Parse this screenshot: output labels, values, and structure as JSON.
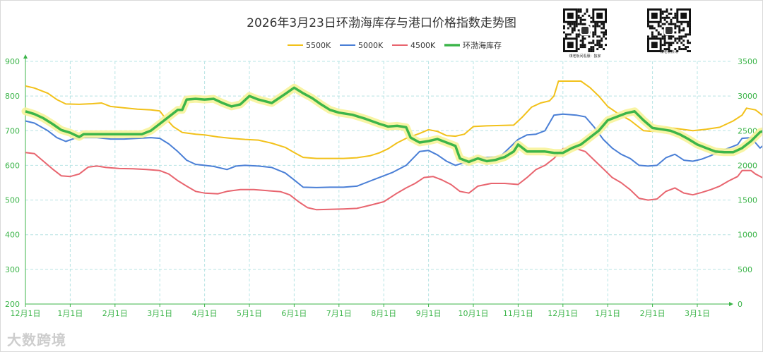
{
  "chart_data": {
    "type": "line",
    "title": "2026年3月23日环渤海库存与港口价格指数走势图",
    "x_ticks": [
      "12月1日",
      "1月1日",
      "2月1日",
      "3月1日",
      "4月1日",
      "5月1日",
      "6月1日",
      "7月1日",
      "8月1日",
      "9月1日",
      "10月1日",
      "11月1日",
      "12月1日",
      "1月1日",
      "2月1日",
      "3月1日"
    ],
    "y_left": {
      "min": 200,
      "max": 900,
      "ticks": [
        200,
        300,
        400,
        500,
        600,
        700,
        800,
        900
      ]
    },
    "y_right": {
      "min": 0,
      "max": 3500,
      "ticks": [
        0,
        500,
        1000,
        1500,
        2000,
        2500,
        3000,
        3500
      ]
    },
    "x_range": [
      0,
      16.65
    ],
    "grid": true,
    "legend_position": "top-center",
    "series": [
      {
        "name": "5500K",
        "axis": "left",
        "color": "#f2c11a",
        "points": [
          [
            0,
            829
          ],
          [
            0.2,
            823
          ],
          [
            0.5,
            808
          ],
          [
            0.7,
            790
          ],
          [
            0.9,
            777
          ],
          [
            1.2,
            776
          ],
          [
            1.5,
            778
          ],
          [
            1.7,
            780
          ],
          [
            1.9,
            770
          ],
          [
            2.2,
            766
          ],
          [
            2.5,
            762
          ],
          [
            2.8,
            760
          ],
          [
            3,
            757
          ],
          [
            3.1,
            740
          ],
          [
            3.3,
            712
          ],
          [
            3.5,
            695
          ],
          [
            3.8,
            690
          ],
          [
            4,
            688
          ],
          [
            4.3,
            682
          ],
          [
            4.6,
            678
          ],
          [
            4.9,
            675
          ],
          [
            5.2,
            673
          ],
          [
            5.5,
            664
          ],
          [
            5.8,
            652
          ],
          [
            6,
            637
          ],
          [
            6.2,
            623
          ],
          [
            6.5,
            620
          ],
          [
            6.8,
            620
          ],
          [
            7.1,
            620
          ],
          [
            7.4,
            622
          ],
          [
            7.7,
            628
          ],
          [
            7.9,
            636
          ],
          [
            8.1,
            648
          ],
          [
            8.3,
            665
          ],
          [
            8.5,
            678
          ],
          [
            8.8,
            692
          ],
          [
            9,
            703
          ],
          [
            9.2,
            698
          ],
          [
            9.4,
            686
          ],
          [
            9.6,
            684
          ],
          [
            9.8,
            690
          ],
          [
            10,
            712
          ],
          [
            10.3,
            714
          ],
          [
            10.6,
            715
          ],
          [
            10.9,
            716
          ],
          [
            11.1,
            740
          ],
          [
            11.3,
            768
          ],
          [
            11.5,
            780
          ],
          [
            11.7,
            786
          ],
          [
            11.8,
            800
          ],
          [
            11.9,
            843
          ],
          [
            12.1,
            843
          ],
          [
            12.4,
            843
          ],
          [
            12.6,
            825
          ],
          [
            12.8,
            800
          ],
          [
            13,
            770
          ],
          [
            13.2,
            752
          ],
          [
            13.5,
            730
          ],
          [
            13.8,
            700
          ],
          [
            14,
            698
          ],
          [
            14.3,
            710
          ],
          [
            14.6,
            705
          ],
          [
            14.9,
            700
          ],
          [
            15.2,
            704
          ],
          [
            15.5,
            710
          ],
          [
            15.8,
            728
          ],
          [
            16,
            745
          ],
          [
            16.1,
            765
          ],
          [
            16.3,
            760
          ],
          [
            16.5,
            740
          ],
          [
            16.65,
            745
          ]
        ]
      },
      {
        "name": "5000K",
        "axis": "left",
        "color": "#4a7fd6",
        "points": [
          [
            0,
            728
          ],
          [
            0.2,
            722
          ],
          [
            0.5,
            700
          ],
          [
            0.7,
            680
          ],
          [
            0.9,
            669
          ],
          [
            1.1,
            678
          ],
          [
            1.3,
            680
          ],
          [
            1.6,
            680
          ],
          [
            1.9,
            676
          ],
          [
            2.2,
            676
          ],
          [
            2.5,
            678
          ],
          [
            2.8,
            680
          ],
          [
            3,
            678
          ],
          [
            3.2,
            662
          ],
          [
            3.4,
            640
          ],
          [
            3.6,
            615
          ],
          [
            3.8,
            603
          ],
          [
            4,
            600
          ],
          [
            4.2,
            597
          ],
          [
            4.5,
            588
          ],
          [
            4.7,
            598
          ],
          [
            4.9,
            600
          ],
          [
            5.2,
            598
          ],
          [
            5.5,
            594
          ],
          [
            5.8,
            578
          ],
          [
            6,
            558
          ],
          [
            6.2,
            537
          ],
          [
            6.5,
            536
          ],
          [
            6.8,
            537
          ],
          [
            7.1,
            537
          ],
          [
            7.4,
            540
          ],
          [
            7.7,
            555
          ],
          [
            8,
            570
          ],
          [
            8.2,
            580
          ],
          [
            8.5,
            600
          ],
          [
            8.8,
            640
          ],
          [
            9,
            643
          ],
          [
            9.2,
            630
          ],
          [
            9.4,
            612
          ],
          [
            9.6,
            600
          ],
          [
            9.8,
            608
          ],
          [
            10,
            620
          ],
          [
            10.3,
            623
          ],
          [
            10.6,
            625
          ],
          [
            10.8,
            650
          ],
          [
            11,
            675
          ],
          [
            11.2,
            688
          ],
          [
            11.4,
            690
          ],
          [
            11.6,
            700
          ],
          [
            11.8,
            745
          ],
          [
            12,
            748
          ],
          [
            12.3,
            745
          ],
          [
            12.5,
            740
          ],
          [
            12.7,
            710
          ],
          [
            12.9,
            675
          ],
          [
            13.1,
            650
          ],
          [
            13.3,
            632
          ],
          [
            13.5,
            620
          ],
          [
            13.7,
            600
          ],
          [
            13.9,
            598
          ],
          [
            14.1,
            600
          ],
          [
            14.3,
            622
          ],
          [
            14.5,
            632
          ],
          [
            14.7,
            615
          ],
          [
            14.9,
            612
          ],
          [
            15.1,
            618
          ],
          [
            15.3,
            628
          ],
          [
            15.5,
            640
          ],
          [
            15.7,
            650
          ],
          [
            15.9,
            660
          ],
          [
            16,
            678
          ],
          [
            16.2,
            680
          ],
          [
            16.4,
            650
          ],
          [
            16.5,
            660
          ],
          [
            16.65,
            665
          ]
        ]
      },
      {
        "name": "4500K",
        "axis": "left",
        "color": "#e8656f",
        "points": [
          [
            0,
            637
          ],
          [
            0.2,
            634
          ],
          [
            0.4,
            612
          ],
          [
            0.6,
            590
          ],
          [
            0.8,
            570
          ],
          [
            1,
            568
          ],
          [
            1.2,
            575
          ],
          [
            1.4,
            595
          ],
          [
            1.6,
            598
          ],
          [
            1.8,
            594
          ],
          [
            2.1,
            591
          ],
          [
            2.4,
            590
          ],
          [
            2.7,
            588
          ],
          [
            3,
            585
          ],
          [
            3.2,
            575
          ],
          [
            3.4,
            556
          ],
          [
            3.6,
            540
          ],
          [
            3.8,
            525
          ],
          [
            4,
            520
          ],
          [
            4.3,
            518
          ],
          [
            4.5,
            525
          ],
          [
            4.8,
            530
          ],
          [
            5.1,
            530
          ],
          [
            5.4,
            527
          ],
          [
            5.7,
            524
          ],
          [
            5.9,
            515
          ],
          [
            6.1,
            495
          ],
          [
            6.3,
            478
          ],
          [
            6.5,
            472
          ],
          [
            6.8,
            473
          ],
          [
            7.1,
            474
          ],
          [
            7.4,
            476
          ],
          [
            7.7,
            485
          ],
          [
            8,
            495
          ],
          [
            8.3,
            520
          ],
          [
            8.5,
            535
          ],
          [
            8.7,
            548
          ],
          [
            8.9,
            565
          ],
          [
            9.1,
            568
          ],
          [
            9.3,
            558
          ],
          [
            9.5,
            545
          ],
          [
            9.7,
            525
          ],
          [
            9.9,
            520
          ],
          [
            10.1,
            540
          ],
          [
            10.4,
            548
          ],
          [
            10.7,
            548
          ],
          [
            11,
            545
          ],
          [
            11.2,
            565
          ],
          [
            11.4,
            588
          ],
          [
            11.6,
            600
          ],
          [
            11.8,
            620
          ],
          [
            12,
            648
          ],
          [
            12.3,
            648
          ],
          [
            12.5,
            640
          ],
          [
            12.7,
            615
          ],
          [
            12.9,
            590
          ],
          [
            13.1,
            565
          ],
          [
            13.3,
            550
          ],
          [
            13.5,
            530
          ],
          [
            13.7,
            505
          ],
          [
            13.9,
            500
          ],
          [
            14.1,
            503
          ],
          [
            14.3,
            525
          ],
          [
            14.5,
            535
          ],
          [
            14.7,
            520
          ],
          [
            14.9,
            515
          ],
          [
            15.1,
            522
          ],
          [
            15.3,
            530
          ],
          [
            15.5,
            540
          ],
          [
            15.7,
            555
          ],
          [
            15.9,
            568
          ],
          [
            16,
            585
          ],
          [
            16.2,
            585
          ],
          [
            16.3,
            575
          ],
          [
            16.45,
            565
          ],
          [
            16.65,
            570
          ]
        ]
      },
      {
        "name": "环渤海库存",
        "axis": "right",
        "color": "#3cb54a",
        "points": [
          [
            0,
            2780
          ],
          [
            0.2,
            2740
          ],
          [
            0.4,
            2680
          ],
          [
            0.6,
            2600
          ],
          [
            0.8,
            2510
          ],
          [
            1,
            2470
          ],
          [
            1.1,
            2440
          ],
          [
            1.2,
            2410
          ],
          [
            1.3,
            2450
          ],
          [
            1.5,
            2450
          ],
          [
            1.8,
            2450
          ],
          [
            2.1,
            2450
          ],
          [
            2.4,
            2450
          ],
          [
            2.6,
            2450
          ],
          [
            2.8,
            2500
          ],
          [
            3,
            2600
          ],
          [
            3.2,
            2700
          ],
          [
            3.4,
            2800
          ],
          [
            3.5,
            2800
          ],
          [
            3.6,
            2950
          ],
          [
            3.8,
            2960
          ],
          [
            4,
            2950
          ],
          [
            4.2,
            2960
          ],
          [
            4.4,
            2900
          ],
          [
            4.6,
            2850
          ],
          [
            4.8,
            2880
          ],
          [
            5,
            3000
          ],
          [
            5.2,
            2950
          ],
          [
            5.5,
            2900
          ],
          [
            5.8,
            3030
          ],
          [
            6,
            3120
          ],
          [
            6.2,
            3040
          ],
          [
            6.4,
            2970
          ],
          [
            6.6,
            2880
          ],
          [
            6.8,
            2800
          ],
          [
            7,
            2760
          ],
          [
            7.3,
            2730
          ],
          [
            7.6,
            2670
          ],
          [
            7.9,
            2600
          ],
          [
            8.1,
            2560
          ],
          [
            8.3,
            2570
          ],
          [
            8.5,
            2550
          ],
          [
            8.6,
            2400
          ],
          [
            8.8,
            2330
          ],
          [
            9,
            2350
          ],
          [
            9.2,
            2380
          ],
          [
            9.4,
            2330
          ],
          [
            9.6,
            2280
          ],
          [
            9.7,
            2100
          ],
          [
            9.9,
            2050
          ],
          [
            10.1,
            2100
          ],
          [
            10.3,
            2060
          ],
          [
            10.5,
            2080
          ],
          [
            10.7,
            2120
          ],
          [
            10.9,
            2200
          ],
          [
            11,
            2300
          ],
          [
            11.2,
            2200
          ],
          [
            11.4,
            2200
          ],
          [
            11.6,
            2200
          ],
          [
            11.8,
            2180
          ],
          [
            12,
            2180
          ],
          [
            12.2,
            2250
          ],
          [
            12.4,
            2300
          ],
          [
            12.6,
            2400
          ],
          [
            12.8,
            2500
          ],
          [
            13,
            2650
          ],
          [
            13.2,
            2700
          ],
          [
            13.4,
            2750
          ],
          [
            13.6,
            2780
          ],
          [
            13.8,
            2650
          ],
          [
            14,
            2540
          ],
          [
            14.2,
            2520
          ],
          [
            14.4,
            2500
          ],
          [
            14.6,
            2450
          ],
          [
            14.8,
            2380
          ],
          [
            15,
            2300
          ],
          [
            15.2,
            2250
          ],
          [
            15.4,
            2200
          ],
          [
            15.6,
            2190
          ],
          [
            15.8,
            2190
          ],
          [
            16,
            2250
          ],
          [
            16.2,
            2350
          ],
          [
            16.4,
            2480
          ],
          [
            16.55,
            2510
          ],
          [
            16.65,
            2560
          ]
        ]
      }
    ]
  },
  "qr_left_caption": "煤老板间看服：独家",
  "qr_right_caption": "煤老板快讯",
  "watermark": "大数跨境"
}
